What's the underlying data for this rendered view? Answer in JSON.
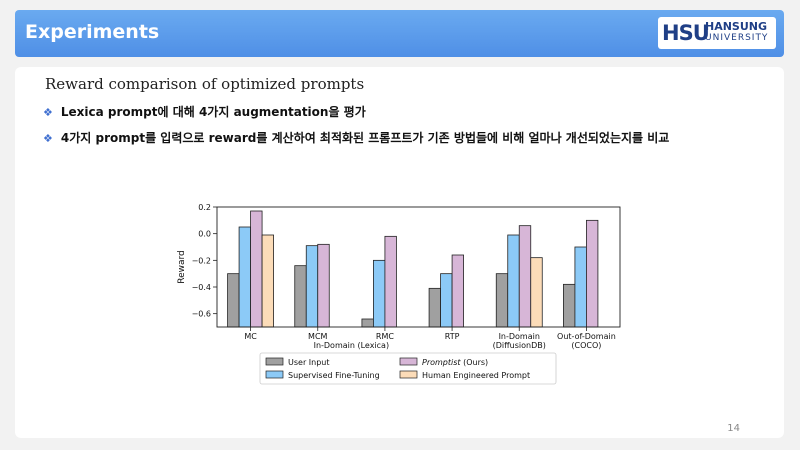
{
  "slide": {
    "title": "Experiments",
    "logo_mark": "HSU",
    "logo_name": "HANSUNG",
    "logo_sub": "UNIVERSITY",
    "subtitle": "Reward comparison of optimized prompts",
    "bullets": [
      "Lexica prompt에 대해 4가지 augmentation을 평가",
      "4가지 prompt를 입력으로 reward를 계산하여 최적화된 프롬프트가 기존 방법들에 비해 얼마나 개선되었는지를 비교"
    ],
    "page_number": "14",
    "colors": {
      "header": "#5b9bec",
      "bullet_mark": "#3f6fd0",
      "logo": "#1f3f86"
    }
  },
  "chart_data": {
    "type": "bar",
    "ylabel": "Reward",
    "ylim": [
      -0.7,
      0.2
    ],
    "yticks": [
      0.2,
      0.0,
      -0.2,
      -0.4,
      -0.6
    ],
    "yticklabels": [
      "0.2",
      "0.0",
      "−0.2",
      "−0.4",
      "−0.6"
    ],
    "categories": [
      "MC",
      "MCM",
      "RMC",
      "RTP",
      "In-Domain",
      "Out-of-Domain"
    ],
    "category_sublabels": [
      "",
      "",
      "",
      "",
      "(DiffusionDB)",
      "(COCO)"
    ],
    "group_label": "In-Domain (Lexica)",
    "grid": false,
    "legend_position": "bottom",
    "series": [
      {
        "name": "User Input",
        "color": "#a0a0a0",
        "values": [
          -0.3,
          -0.24,
          -0.64,
          -0.41,
          -0.3,
          -0.38
        ]
      },
      {
        "name": "Supervised Fine-Tuning",
        "color": "#8ccaf7",
        "values": [
          0.05,
          -0.09,
          -0.2,
          -0.3,
          -0.01,
          -0.1
        ]
      },
      {
        "name": "Promptist",
        "name_suffix": " (Ours)",
        "color": "#d7b6d7",
        "values": [
          0.17,
          -0.08,
          -0.02,
          -0.16,
          0.06,
          0.1
        ]
      },
      {
        "name": "Human Engineered Prompt",
        "color": "#fcdcb8",
        "values": [
          -0.01,
          null,
          null,
          null,
          -0.18,
          null
        ]
      }
    ]
  }
}
